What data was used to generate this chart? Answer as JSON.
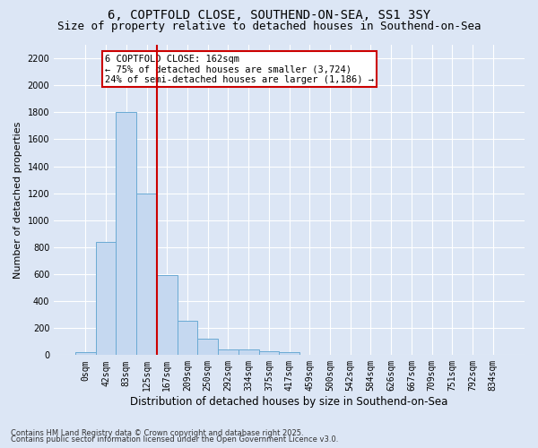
{
  "title_line1": "6, COPTFOLD CLOSE, SOUTHEND-ON-SEA, SS1 3SY",
  "title_line2": "Size of property relative to detached houses in Southend-on-Sea",
  "xlabel": "Distribution of detached houses by size in Southend-on-Sea",
  "ylabel": "Number of detached properties",
  "bar_labels": [
    "0sqm",
    "42sqm",
    "83sqm",
    "125sqm",
    "167sqm",
    "209sqm",
    "250sqm",
    "292sqm",
    "334sqm",
    "375sqm",
    "417sqm",
    "459sqm",
    "500sqm",
    "542sqm",
    "584sqm",
    "626sqm",
    "667sqm",
    "709sqm",
    "751sqm",
    "792sqm",
    "834sqm"
  ],
  "bar_values": [
    20,
    840,
    1800,
    1200,
    590,
    255,
    120,
    45,
    45,
    30,
    20,
    0,
    0,
    0,
    0,
    0,
    0,
    0,
    0,
    0,
    0
  ],
  "bar_color": "#c5d8f0",
  "bar_edge_color": "#6aaad4",
  "background_color": "#dce6f5",
  "grid_color": "#ffffff",
  "ylim": [
    0,
    2300
  ],
  "yticks": [
    0,
    200,
    400,
    600,
    800,
    1000,
    1200,
    1400,
    1600,
    1800,
    2000,
    2200
  ],
  "red_line_x": 3.5,
  "annotation_text": "6 COPTFOLD CLOSE: 162sqm\n← 75% of detached houses are smaller (3,724)\n24% of semi-detached houses are larger (1,186) →",
  "annotation_box_color": "#ffffff",
  "annotation_edge_color": "#cc0000",
  "footer_line1": "Contains HM Land Registry data © Crown copyright and database right 2025.",
  "footer_line2": "Contains public sector information licensed under the Open Government Licence v3.0.",
  "title_fontsize": 10,
  "subtitle_fontsize": 9,
  "tick_fontsize": 7,
  "ylabel_fontsize": 8,
  "xlabel_fontsize": 8.5,
  "footer_fontsize": 6
}
